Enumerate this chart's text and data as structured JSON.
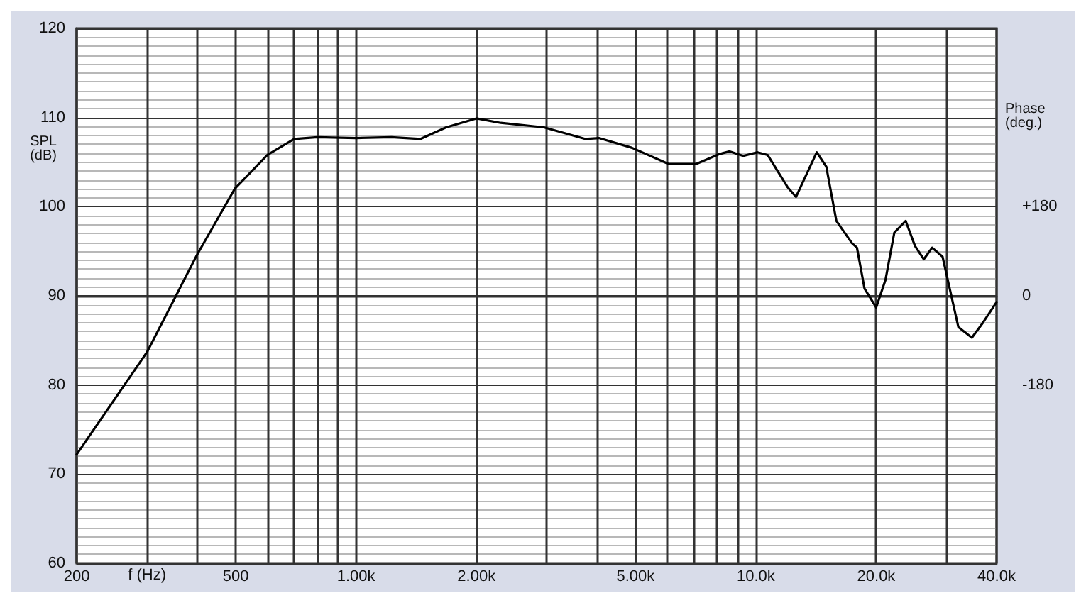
{
  "chart_data": {
    "type": "line",
    "xlabel": "f (Hz)",
    "ylabel": "SPL (dB)",
    "y2label": "Phase (deg.)",
    "log": "x",
    "grid": true,
    "marker": "none",
    "line_style": "solid",
    "xlim": [
      200,
      40000
    ],
    "xticks": [
      200,
      {
        "value": 300,
        "label": null
      },
      {
        "value": 400,
        "label": null
      },
      500,
      {
        "value": 600,
        "label": null
      },
      {
        "value": 700,
        "label": null
      },
      {
        "value": 800,
        "label": null
      },
      {
        "value": 900,
        "label": null
      },
      {
        "value": 1000,
        "label": "1.00k"
      },
      {
        "value": 2000,
        "label": "2.00k"
      },
      {
        "value": 3000,
        "label": null
      },
      {
        "value": 4000,
        "label": null
      },
      {
        "value": 5000,
        "label": "5.00k"
      },
      {
        "value": 6000,
        "label": null
      },
      {
        "value": 7000,
        "label": null
      },
      {
        "value": 8000,
        "label": null
      },
      {
        "value": 9000,
        "label": null
      },
      {
        "value": 10000,
        "label": "10.0k"
      },
      {
        "value": 20000,
        "label": "20.0k"
      },
      {
        "value": 30000,
        "label": null
      },
      {
        "value": 40000,
        "label": "40.0k"
      }
    ],
    "ylim": [
      60,
      120
    ],
    "yticks": [
      60,
      {
        "value": 61,
        "label": null
      },
      {
        "value": 62,
        "label": null
      },
      {
        "value": 63,
        "label": null
      },
      {
        "value": 64,
        "label": null
      },
      {
        "value": 65,
        "label": null
      },
      {
        "value": 66,
        "label": null
      },
      {
        "value": 67,
        "label": null
      },
      {
        "value": 68,
        "label": null
      },
      {
        "value": 69,
        "label": null
      },
      70,
      {
        "value": 71,
        "label": null
      },
      {
        "value": 72,
        "label": null
      },
      {
        "value": 73,
        "label": null
      },
      {
        "value": 74,
        "label": null
      },
      {
        "value": 75,
        "label": null
      },
      {
        "value": 76,
        "label": null
      },
      {
        "value": 77,
        "label": null
      },
      {
        "value": 78,
        "label": null
      },
      {
        "value": 79,
        "label": null
      },
      80,
      {
        "value": 81,
        "label": null
      },
      {
        "value": 82,
        "label": null
      },
      {
        "value": 83,
        "label": null
      },
      {
        "value": 84,
        "label": null
      },
      {
        "value": 85,
        "label": null
      },
      {
        "value": 86,
        "label": null
      },
      {
        "value": 87,
        "label": null
      },
      {
        "value": 88,
        "label": null
      },
      {
        "value": 89,
        "label": null
      },
      90,
      {
        "value": 91,
        "label": null
      },
      {
        "value": 92,
        "label": null
      },
      {
        "value": 93,
        "label": null
      },
      {
        "value": 94,
        "label": null
      },
      {
        "value": 95,
        "label": null
      },
      {
        "value": 96,
        "label": null
      },
      {
        "value": 97,
        "label": null
      },
      {
        "value": 98,
        "label": null
      },
      {
        "value": 99,
        "label": null
      },
      100,
      {
        "value": 101,
        "label": null
      },
      {
        "value": 102,
        "label": null
      },
      {
        "value": 103,
        "label": null
      },
      {
        "value": 104,
        "label": null
      },
      {
        "value": 105,
        "label": null
      },
      {
        "value": 106,
        "label": null
      },
      {
        "value": 107,
        "label": null
      },
      {
        "value": 108,
        "label": null
      },
      {
        "value": 109,
        "label": null
      },
      110,
      {
        "value": 111,
        "label": null
      },
      {
        "value": 112,
        "label": null
      },
      {
        "value": 113,
        "label": null
      },
      {
        "value": 114,
        "label": null
      },
      {
        "value": 115,
        "label": null
      },
      {
        "value": 116,
        "label": null
      },
      {
        "value": 117,
        "label": null
      },
      {
        "value": 118,
        "label": null
      },
      {
        "value": 119,
        "label": null
      },
      120
    ],
    "y2lim": [
      -540,
      540
    ],
    "y2ticks": [
      {
        "value": 180,
        "label": "+180"
      },
      0,
      -180
    ],
    "series": [
      {
        "color": "#000000",
        "x": [
          200,
          300,
          400,
          497,
          600,
          700,
          800,
          1000,
          1226,
          1450,
          1680,
          2000,
          2300,
          2950,
          3740,
          4050,
          4900,
          6040,
          7100,
          8100,
          8600,
          9300,
          10100,
          10700,
          12000,
          12600,
          14200,
          15000,
          15900,
          17400,
          17900,
          18700,
          20000,
          21100,
          22200,
          23700,
          25000,
          26300,
          27600,
          29300,
          32100,
          34700,
          37000,
          40000
        ],
        "values": [
          72.2,
          83.7,
          94.6,
          102.0,
          105.8,
          107.6,
          107.8,
          107.7,
          107.8,
          107.6,
          108.9,
          109.9,
          109.4,
          108.9,
          107.6,
          107.7,
          106.6,
          104.8,
          104.8,
          105.9,
          106.2,
          105.7,
          106.1,
          105.8,
          102.2,
          101.1,
          106.1,
          104.5,
          98.4,
          95.9,
          95.4,
          90.8,
          88.7,
          91.8,
          97.1,
          98.4,
          95.6,
          94.1,
          95.4,
          94.4,
          86.5,
          85.3,
          87.0,
          89.3
        ]
      }
    ]
  }
}
